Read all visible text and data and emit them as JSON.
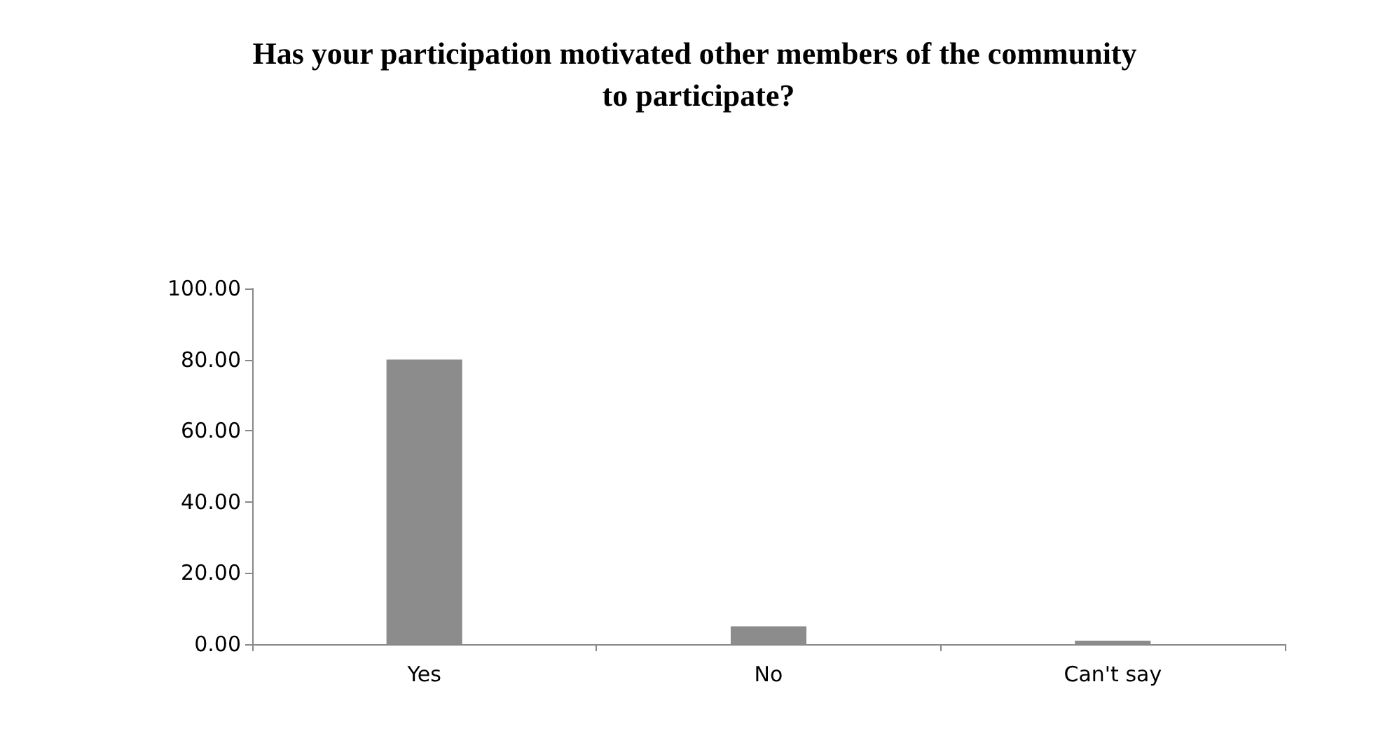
{
  "chart_data": {
    "type": "bar",
    "title": "Has your participation motivated other members of the community to participate?",
    "categories": [
      "Yes",
      "No",
      "Can't say"
    ],
    "values": [
      80,
      5,
      1
    ],
    "color": "#8c8c8c",
    "ylim": [
      0,
      100
    ],
    "yticks": [
      {
        "value": 0,
        "label": "0.00"
      },
      {
        "value": 20,
        "label": "20.00"
      },
      {
        "value": 40,
        "label": "40.00"
      },
      {
        "value": 60,
        "label": "60.00"
      },
      {
        "value": 80,
        "label": "80.00"
      },
      {
        "value": 100,
        "label": "100.00"
      }
    ],
    "grid": false
  }
}
